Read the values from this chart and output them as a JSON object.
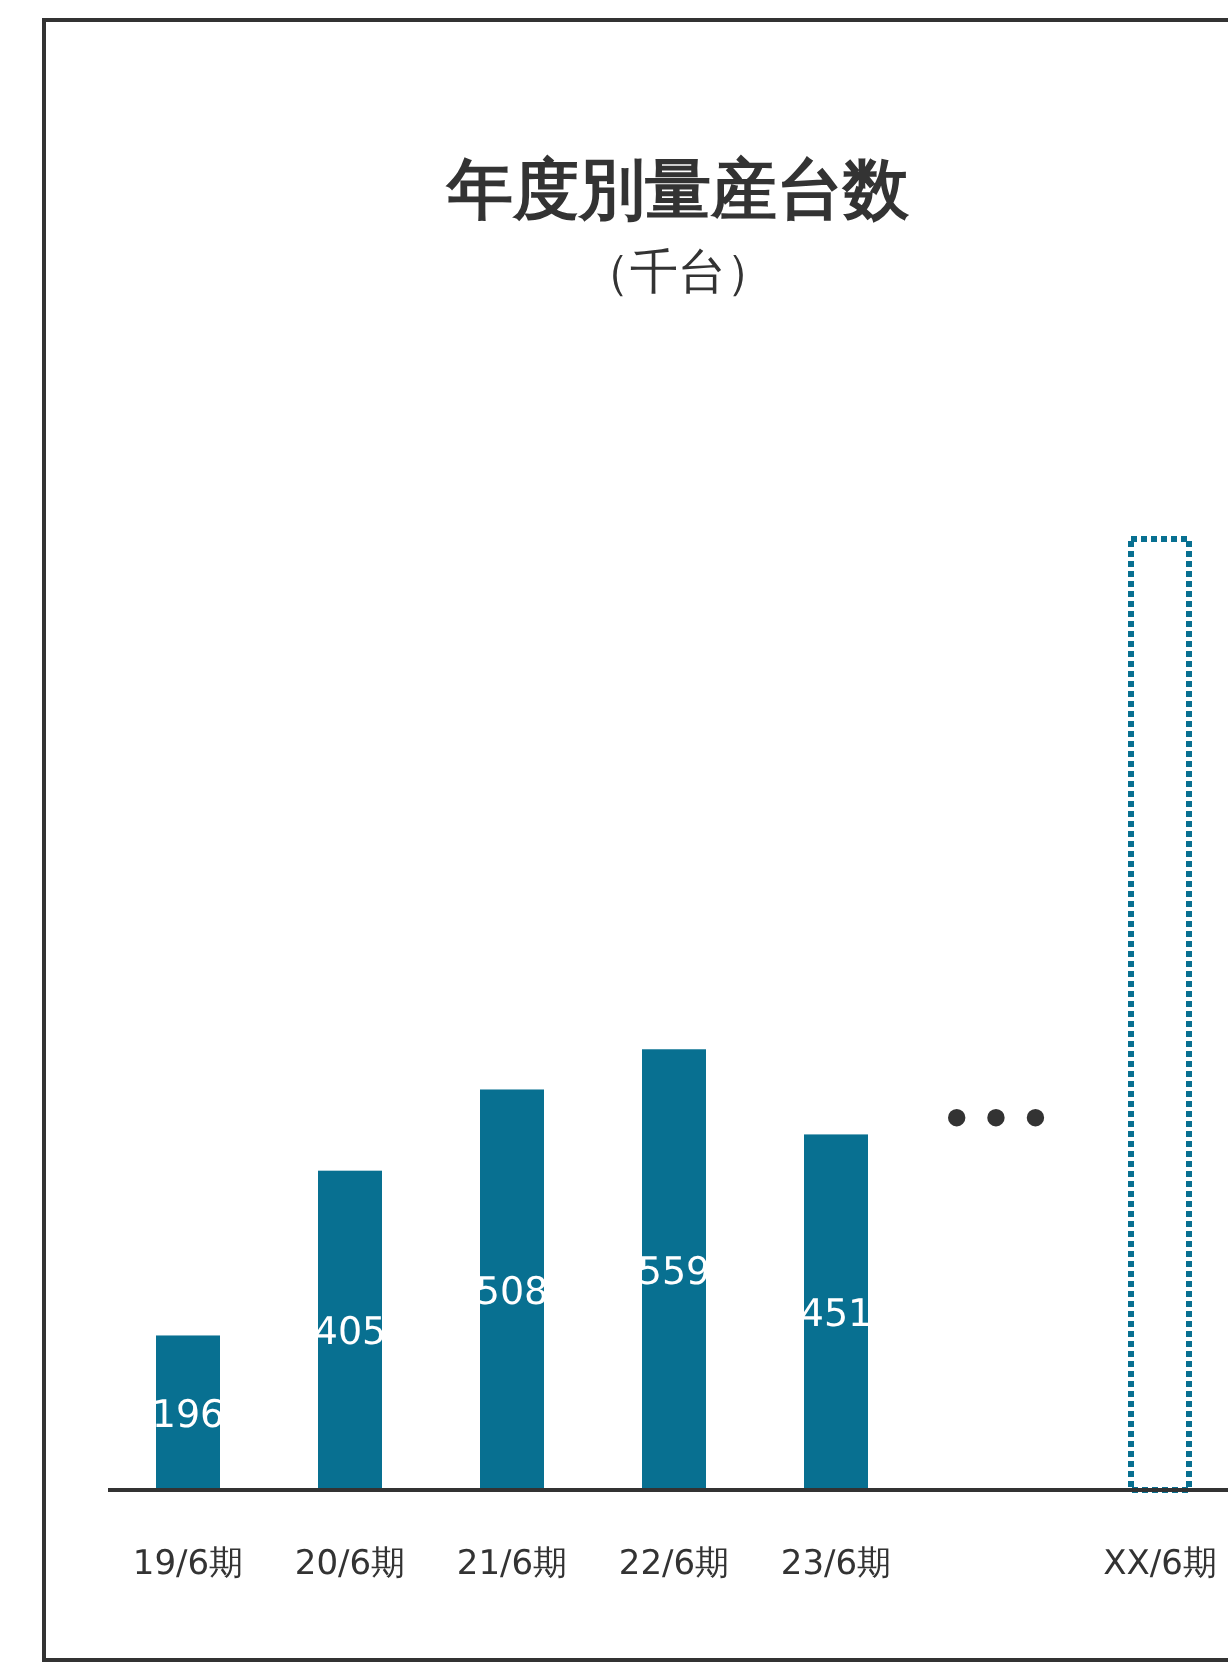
{
  "chart_data": {
    "type": "bar",
    "title": "年度別量産台数",
    "subtitle": "（千台）",
    "categories": [
      "19/6期",
      "20/6期",
      "21/6期",
      "22/6期",
      "23/6期",
      null,
      "XX/6期"
    ],
    "series": [
      {
        "color": "#087091",
        "values": [
          196,
          405,
          508,
          559,
          451,
          null,
          null
        ],
        "value_labels": [
          "196",
          "405",
          "508",
          "559",
          "451",
          null,
          null
        ]
      },
      {
        "color": "#087091",
        "line_style": "dotted",
        "values": [
          null,
          null,
          null,
          null,
          null,
          null,
          1210
        ]
      }
    ],
    "annotations": [
      "•••"
    ]
  }
}
